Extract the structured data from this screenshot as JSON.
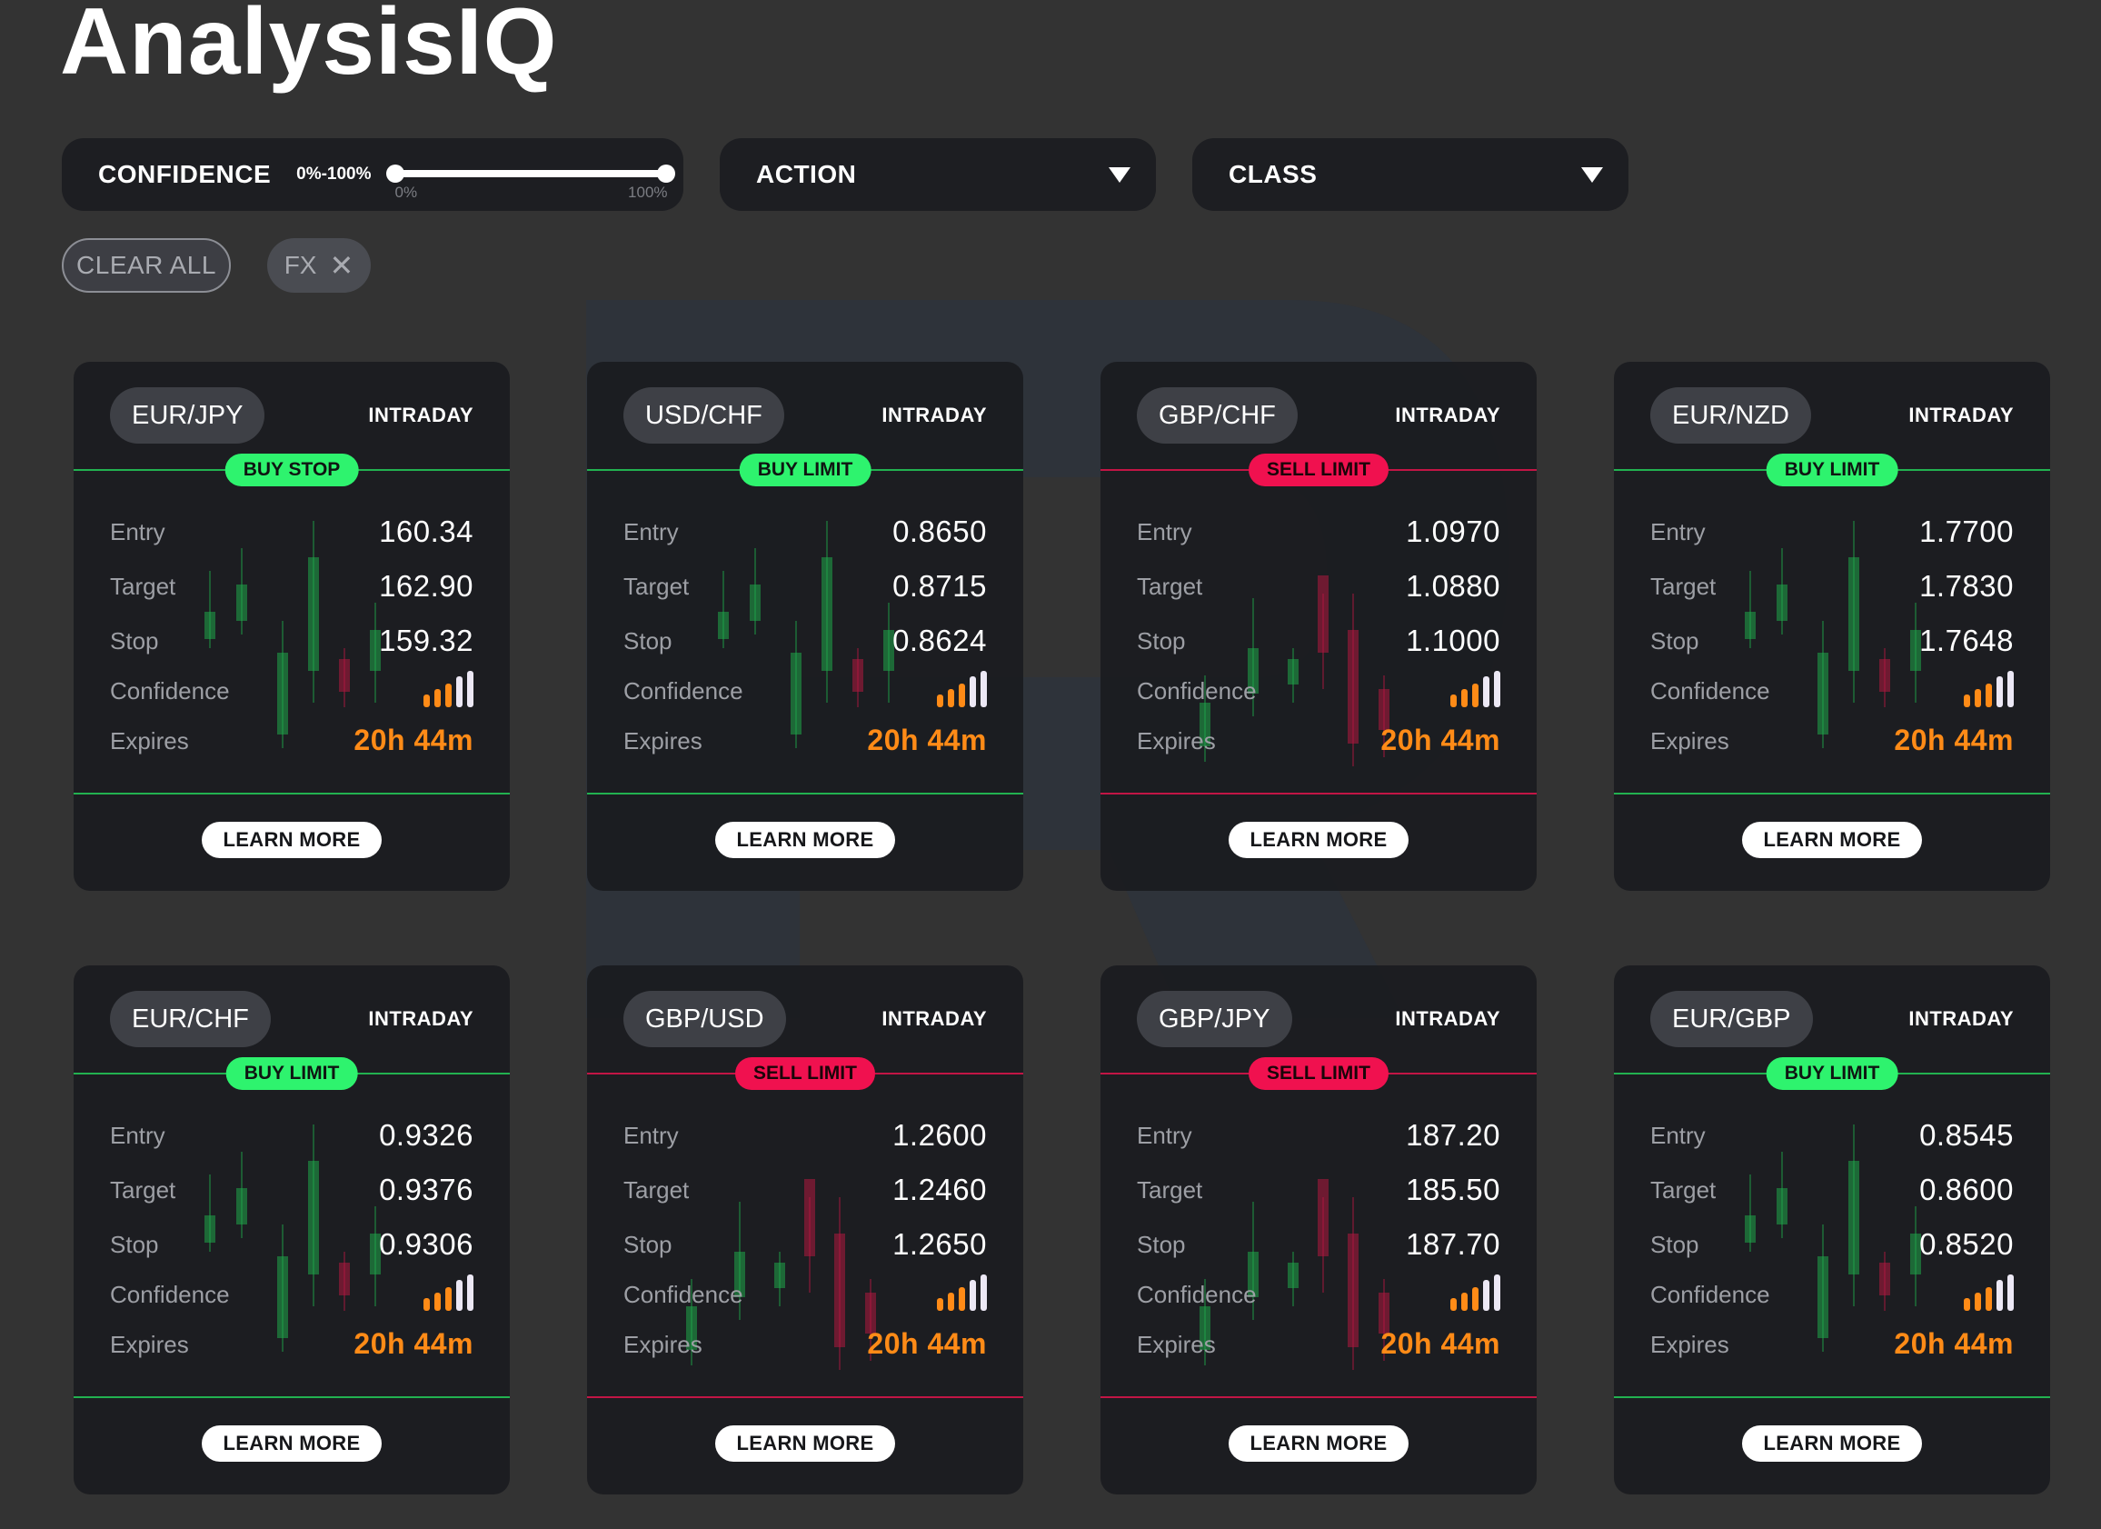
{
  "app_title": "AnalysisIQ",
  "filters": {
    "confidence": {
      "label": "CONFIDENCE",
      "range_text": "0%-100%",
      "min_label": "0%",
      "max_label": "100%"
    },
    "action": {
      "label": "ACTION"
    },
    "class": {
      "label": "CLASS"
    }
  },
  "chips": {
    "clear_all": "CLEAR ALL",
    "fx": "FX",
    "remove_glyph": "✕"
  },
  "row_labels": {
    "entry": "Entry",
    "target": "Target",
    "stop": "Stop",
    "confidence": "Confidence",
    "expires": "Expires"
  },
  "learn_more": "LEARN MORE",
  "colors": {
    "buy": "#2ef36e",
    "sell": "#f0114f",
    "expires": "#ff8b17",
    "background": "#333333",
    "card": "#1b1c20"
  },
  "confidence_level": {
    "filled": 3,
    "total": 5
  },
  "cards": [
    {
      "pair": "EUR/JPY",
      "timeframe": "INTRADAY",
      "action": "BUY STOP",
      "side": "buy",
      "entry": "160.34",
      "target": "162.90",
      "stop": "159.32",
      "expires": "20h 44m"
    },
    {
      "pair": "USD/CHF",
      "timeframe": "INTRADAY",
      "action": "BUY LIMIT",
      "side": "buy",
      "entry": "0.8650",
      "target": "0.8715",
      "stop": "0.8624",
      "expires": "20h 44m"
    },
    {
      "pair": "GBP/CHF",
      "timeframe": "INTRADAY",
      "action": "SELL LIMIT",
      "side": "sell",
      "entry": "1.0970",
      "target": "1.0880",
      "stop": "1.1000",
      "expires": "20h 44m"
    },
    {
      "pair": "EUR/NZD",
      "timeframe": "INTRADAY",
      "action": "BUY LIMIT",
      "side": "buy",
      "entry": "1.7700",
      "target": "1.7830",
      "stop": "1.7648",
      "expires": "20h 44m"
    },
    {
      "pair": "EUR/CHF",
      "timeframe": "INTRADAY",
      "action": "BUY LIMIT",
      "side": "buy",
      "entry": "0.9326",
      "target": "0.9376",
      "stop": "0.9306",
      "expires": "20h 44m"
    },
    {
      "pair": "GBP/USD",
      "timeframe": "INTRADAY",
      "action": "SELL LIMIT",
      "side": "sell",
      "entry": "1.2600",
      "target": "1.2460",
      "stop": "1.2650",
      "expires": "20h 44m"
    },
    {
      "pair": "GBP/JPY",
      "timeframe": "INTRADAY",
      "action": "SELL LIMIT",
      "side": "sell",
      "entry": "187.20",
      "target": "185.50",
      "stop": "187.70",
      "expires": "20h 44m"
    },
    {
      "pair": "EUR/GBP",
      "timeframe": "INTRADAY",
      "action": "BUY LIMIT",
      "side": "buy",
      "entry": "0.8545",
      "target": "0.8600",
      "stop": "0.8520",
      "expires": "20h 44m"
    }
  ]
}
